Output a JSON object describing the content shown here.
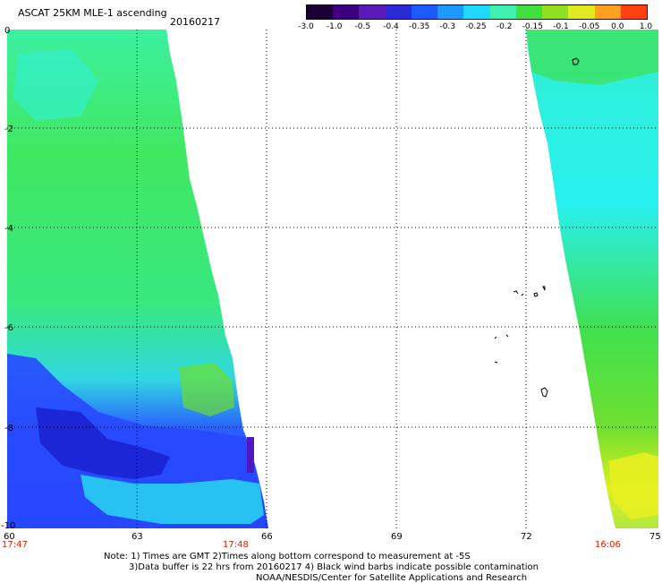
{
  "header": {
    "title": "ASCAT 25KM MLE-1 ascending",
    "date": "20160217"
  },
  "colorbar": {
    "labels": [
      "-3.0",
      "-1.0",
      "-0.5",
      "-0.4",
      "-0.35",
      "-0.3",
      "-0.25",
      "-0.2",
      "-0.15",
      "-0.1",
      "-0.05",
      "0.0",
      "1.0"
    ],
    "colors": [
      "#1a0033",
      "#3a0080",
      "#5a1ab8",
      "#2a2ad8",
      "#1a5aff",
      "#1e9aff",
      "#20d8ff",
      "#40f0b0",
      "#40e040",
      "#90e020",
      "#e0e820",
      "#ffa020",
      "#ff4010"
    ]
  },
  "map": {
    "x_ticks": [
      "60",
      "63",
      "66",
      "69",
      "72",
      "75"
    ],
    "y_ticks": [
      "0",
      "-2",
      "-4",
      "-6",
      "-8",
      "-10"
    ],
    "times": [
      "17:47",
      "17:48",
      "16:06"
    ]
  },
  "notes": {
    "line1": "Note: 1) Times are GMT 2)Times along bottom correspond to measurement at -5S",
    "line2": "3)Data buffer is 22 hrs from 20160217 4) Black wind barbs indicate possible contamination",
    "line3": "NOAA/NESDIS/Center for Satellite Applications and Research"
  }
}
